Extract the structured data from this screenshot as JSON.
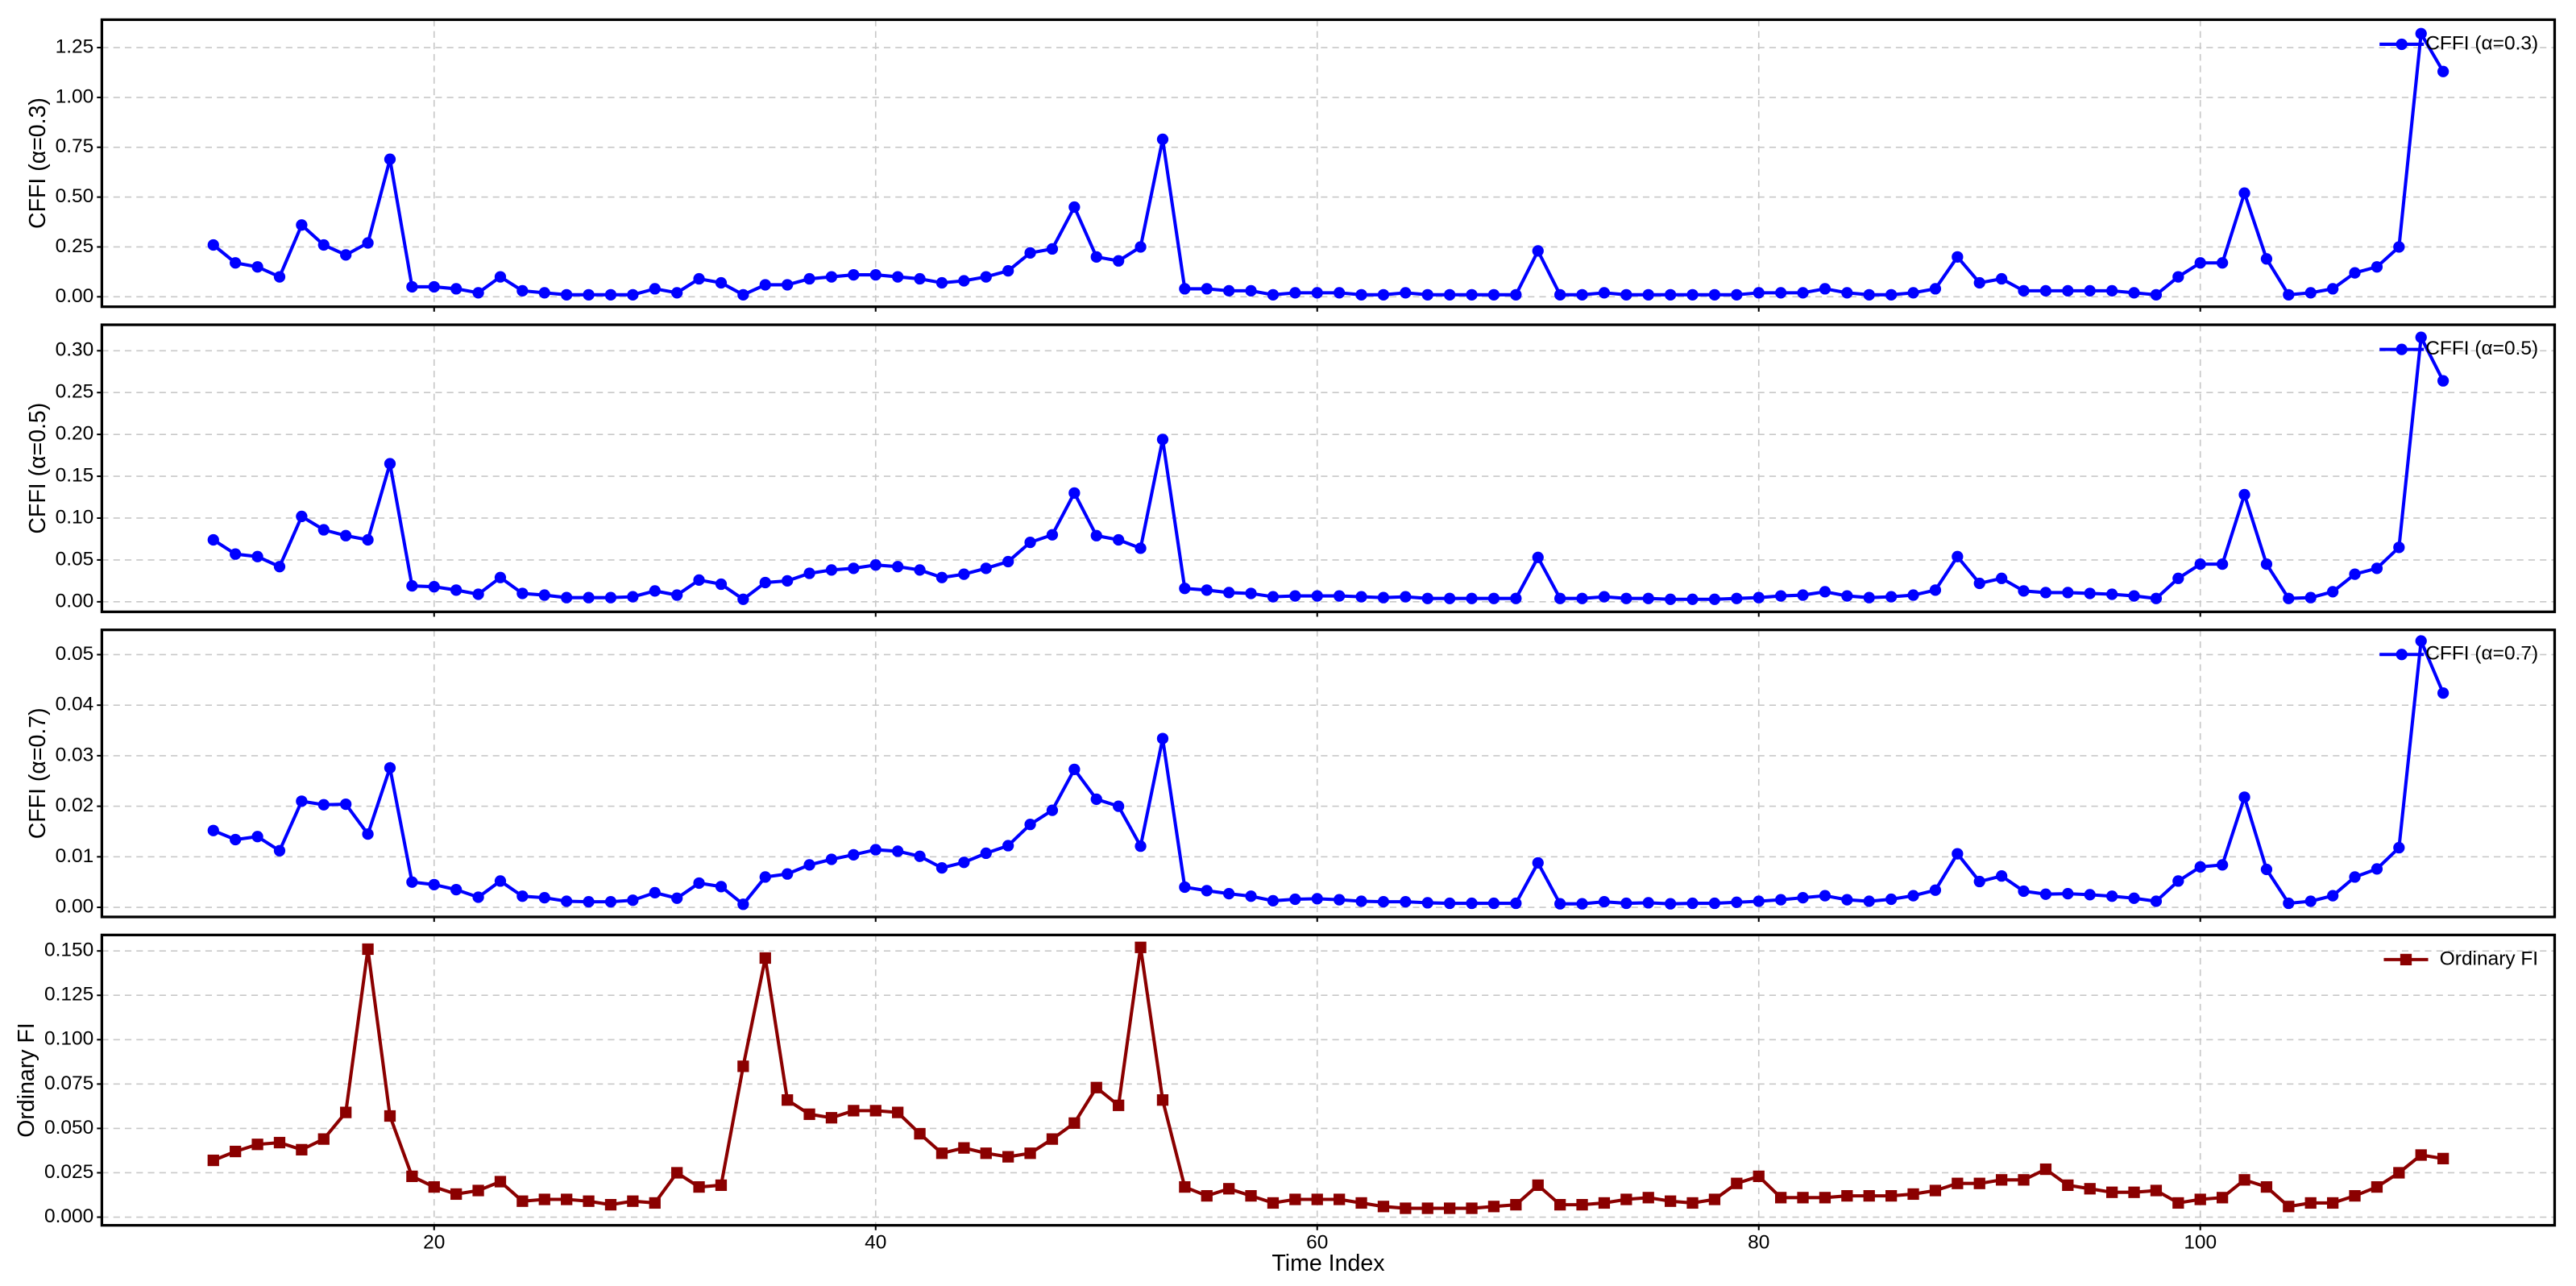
{
  "chart_data": [
    {
      "type": "line",
      "ylabel": "CFFI (α=0.3)",
      "grid": true,
      "legend": "upper right",
      "xlim": [
        4.95,
        116.05
      ],
      "xticks": [
        20,
        40,
        60,
        80,
        100
      ],
      "ylim": [
        -0.05,
        1.39
      ],
      "yticks": [
        {
          "value": 0,
          "label": "0.00"
        },
        0.25,
        {
          "value": 0.5,
          "label": "0.50"
        },
        0.75,
        {
          "value": 1,
          "label": "1.00"
        },
        1.25
      ],
      "x": [
        10,
        11,
        12,
        13,
        14,
        15,
        16,
        17,
        18,
        19,
        20,
        21,
        22,
        23,
        24,
        25,
        26,
        27,
        28,
        29,
        30,
        31,
        32,
        33,
        34,
        35,
        36,
        37,
        38,
        39,
        40,
        41,
        42,
        43,
        44,
        45,
        46,
        47,
        48,
        49,
        50,
        51,
        52,
        53,
        54,
        55,
        56,
        57,
        58,
        59,
        60,
        61,
        62,
        63,
        64,
        65,
        66,
        67,
        68,
        69,
        70,
        71,
        72,
        73,
        74,
        75,
        76,
        77,
        78,
        79,
        80,
        81,
        82,
        83,
        84,
        85,
        86,
        87,
        88,
        89,
        90,
        91,
        92,
        93,
        94,
        95,
        96,
        97,
        98,
        99,
        100,
        101,
        102,
        103,
        104,
        105,
        106,
        107,
        108,
        109,
        110,
        111
      ],
      "series": [
        {
          "name": "CFFI (α=0.3)",
          "color": "#0000ff",
          "marker": "circle",
          "values": [
            0.26,
            0.17,
            0.15,
            0.1,
            0.36,
            0.26,
            0.21,
            0.27,
            0.69,
            0.05,
            0.05,
            0.04,
            0.02,
            0.1,
            0.03,
            0.02,
            0.01,
            0.01,
            0.01,
            0.01,
            0.04,
            0.02,
            0.09,
            0.07,
            0.01,
            0.06,
            0.06,
            0.09,
            0.1,
            0.11,
            0.11,
            0.1,
            0.09,
            0.07,
            0.08,
            0.1,
            0.13,
            0.22,
            0.24,
            0.45,
            0.2,
            0.18,
            0.25,
            0.79,
            0.04,
            0.04,
            0.03,
            0.03,
            0.01,
            0.02,
            0.02,
            0.02,
            0.01,
            0.01,
            0.02,
            0.01,
            0.01,
            0.01,
            0.01,
            0.01,
            0.23,
            0.01,
            0.01,
            0.02,
            0.01,
            0.01,
            0.01,
            0.01,
            0.01,
            0.01,
            0.02,
            0.02,
            0.02,
            0.04,
            0.02,
            0.01,
            0.01,
            0.02,
            0.04,
            0.2,
            0.07,
            0.09,
            0.03,
            0.03,
            0.03,
            0.03,
            0.03,
            0.02,
            0.01,
            0.1,
            0.17,
            0.17,
            0.52,
            0.19,
            0.01,
            0.02,
            0.04,
            0.12,
            0.15,
            0.25,
            1.32,
            1.13
          ]
        }
      ]
    },
    {
      "type": "line",
      "ylabel": "CFFI (α=0.5)",
      "grid": true,
      "legend": "upper right",
      "xlim": [
        4.95,
        116.05
      ],
      "xticks": [
        20,
        40,
        60,
        80,
        100
      ],
      "ylim": [
        -0.012,
        0.331
      ],
      "yticks": [
        {
          "value": 0,
          "label": "0.00"
        },
        0.05,
        {
          "value": 0.1,
          "label": "0.10"
        },
        0.15,
        {
          "value": 0.2,
          "label": "0.20"
        },
        0.25,
        {
          "value": 0.3,
          "label": "0.30"
        }
      ],
      "x": [
        10,
        11,
        12,
        13,
        14,
        15,
        16,
        17,
        18,
        19,
        20,
        21,
        22,
        23,
        24,
        25,
        26,
        27,
        28,
        29,
        30,
        31,
        32,
        33,
        34,
        35,
        36,
        37,
        38,
        39,
        40,
        41,
        42,
        43,
        44,
        45,
        46,
        47,
        48,
        49,
        50,
        51,
        52,
        53,
        54,
        55,
        56,
        57,
        58,
        59,
        60,
        61,
        62,
        63,
        64,
        65,
        66,
        67,
        68,
        69,
        70,
        71,
        72,
        73,
        74,
        75,
        76,
        77,
        78,
        79,
        80,
        81,
        82,
        83,
        84,
        85,
        86,
        87,
        88,
        89,
        90,
        91,
        92,
        93,
        94,
        95,
        96,
        97,
        98,
        99,
        100,
        101,
        102,
        103,
        104,
        105,
        106,
        107,
        108,
        109,
        110,
        111
      ],
      "series": [
        {
          "name": "CFFI (α=0.5)",
          "color": "#0000ff",
          "marker": "circle",
          "values": [
            0.074,
            0.057,
            0.054,
            0.042,
            0.102,
            0.086,
            0.079,
            0.074,
            0.165,
            0.019,
            0.018,
            0.014,
            0.009,
            0.029,
            0.01,
            0.008,
            0.005,
            0.005,
            0.005,
            0.006,
            0.013,
            0.008,
            0.026,
            0.021,
            0.003,
            0.023,
            0.025,
            0.034,
            0.038,
            0.04,
            0.044,
            0.042,
            0.038,
            0.029,
            0.033,
            0.04,
            0.048,
            0.071,
            0.08,
            0.13,
            0.079,
            0.074,
            0.064,
            0.194,
            0.016,
            0.014,
            0.011,
            0.01,
            0.006,
            0.007,
            0.007,
            0.007,
            0.006,
            0.005,
            0.006,
            0.004,
            0.004,
            0.004,
            0.004,
            0.004,
            0.053,
            0.004,
            0.004,
            0.006,
            0.004,
            0.004,
            0.003,
            0.003,
            0.003,
            0.004,
            0.005,
            0.007,
            0.008,
            0.012,
            0.007,
            0.005,
            0.006,
            0.008,
            0.014,
            0.054,
            0.022,
            0.028,
            0.013,
            0.011,
            0.011,
            0.01,
            0.009,
            0.007,
            0.004,
            0.028,
            0.045,
            0.045,
            0.128,
            0.045,
            0.004,
            0.005,
            0.012,
            0.033,
            0.04,
            0.065,
            0.316,
            0.264
          ]
        }
      ]
    },
    {
      "type": "line",
      "ylabel": "CFFI (α=0.7)",
      "grid": true,
      "legend": "upper right",
      "xlim": [
        4.95,
        116.05
      ],
      "xticks": [
        20,
        40,
        60,
        80,
        100
      ],
      "ylim": [
        -0.0019,
        0.0549
      ],
      "yticks": [
        {
          "value": 0,
          "label": "0.00"
        },
        0.01,
        0.02,
        0.03,
        0.04,
        0.05
      ],
      "x": [
        10,
        11,
        12,
        13,
        14,
        15,
        16,
        17,
        18,
        19,
        20,
        21,
        22,
        23,
        24,
        25,
        26,
        27,
        28,
        29,
        30,
        31,
        32,
        33,
        34,
        35,
        36,
        37,
        38,
        39,
        40,
        41,
        42,
        43,
        44,
        45,
        46,
        47,
        48,
        49,
        50,
        51,
        52,
        53,
        54,
        55,
        56,
        57,
        58,
        59,
        60,
        61,
        62,
        63,
        64,
        65,
        66,
        67,
        68,
        69,
        70,
        71,
        72,
        73,
        74,
        75,
        76,
        77,
        78,
        79,
        80,
        81,
        82,
        83,
        84,
        85,
        86,
        87,
        88,
        89,
        90,
        91,
        92,
        93,
        94,
        95,
        96,
        97,
        98,
        99,
        100,
        101,
        102,
        103,
        104,
        105,
        106,
        107,
        108,
        109,
        110,
        111
      ],
      "series": [
        {
          "name": "CFFI (α=0.7)",
          "color": "#0000ff",
          "marker": "circle",
          "values": [
            0.0152,
            0.0134,
            0.014,
            0.0112,
            0.021,
            0.0203,
            0.0204,
            0.0145,
            0.0276,
            0.005,
            0.0045,
            0.0035,
            0.002,
            0.0052,
            0.0022,
            0.0019,
            0.0012,
            0.0011,
            0.0011,
            0.0014,
            0.0029,
            0.0018,
            0.0048,
            0.0041,
            0.0006,
            0.006,
            0.0066,
            0.0084,
            0.0095,
            0.0104,
            0.0114,
            0.0111,
            0.0101,
            0.0078,
            0.0089,
            0.0107,
            0.0122,
            0.0164,
            0.0192,
            0.0273,
            0.0214,
            0.02,
            0.0121,
            0.0334,
            0.004,
            0.0033,
            0.0027,
            0.0022,
            0.0013,
            0.0016,
            0.0017,
            0.0015,
            0.0012,
            0.0011,
            0.0011,
            0.0009,
            0.0008,
            0.0008,
            0.0008,
            0.0008,
            0.0088,
            0.0007,
            0.0007,
            0.0011,
            0.0008,
            0.0009,
            0.0007,
            0.0008,
            0.0008,
            0.001,
            0.0012,
            0.0015,
            0.0019,
            0.0023,
            0.0015,
            0.0012,
            0.0016,
            0.0023,
            0.0034,
            0.0106,
            0.0051,
            0.0062,
            0.0032,
            0.0026,
            0.0027,
            0.0025,
            0.0022,
            0.0018,
            0.0012,
            0.0052,
            0.008,
            0.0084,
            0.0218,
            0.0075,
            0.0008,
            0.0012,
            0.0023,
            0.006,
            0.0076,
            0.0118,
            0.0527,
            0.0424
          ]
        }
      ]
    },
    {
      "type": "line",
      "ylabel": "Ordinary FI",
      "xlabel": "Time Index",
      "grid": true,
      "legend": "upper right",
      "xlim": [
        4.95,
        116.05
      ],
      "xticks": [
        20,
        40,
        60,
        80,
        100
      ],
      "ylim": [
        -0.0046,
        0.159
      ],
      "yticks": [
        {
          "value": 0,
          "label": "0.000"
        },
        0.025,
        {
          "value": 0.05,
          "label": "0.050"
        },
        0.075,
        {
          "value": 0.1,
          "label": "0.100"
        },
        0.125,
        {
          "value": 0.15,
          "label": "0.150"
        }
      ],
      "x": [
        10,
        11,
        12,
        13,
        14,
        15,
        16,
        17,
        18,
        19,
        20,
        21,
        22,
        23,
        24,
        25,
        26,
        27,
        28,
        29,
        30,
        31,
        32,
        33,
        34,
        35,
        36,
        37,
        38,
        39,
        40,
        41,
        42,
        43,
        44,
        45,
        46,
        47,
        48,
        49,
        50,
        51,
        52,
        53,
        54,
        55,
        56,
        57,
        58,
        59,
        60,
        61,
        62,
        63,
        64,
        65,
        66,
        67,
        68,
        69,
        70,
        71,
        72,
        73,
        74,
        75,
        76,
        77,
        78,
        79,
        80,
        81,
        82,
        83,
        84,
        85,
        86,
        87,
        88,
        89,
        90,
        91,
        92,
        93,
        94,
        95,
        96,
        97,
        98,
        99,
        100,
        101,
        102,
        103,
        104,
        105,
        106,
        107,
        108,
        109,
        110,
        111
      ],
      "series": [
        {
          "name": "Ordinary FI",
          "color": "#8b0000",
          "marker": "square",
          "values": [
            0.032,
            0.037,
            0.041,
            0.042,
            0.038,
            0.044,
            0.059,
            0.151,
            0.057,
            0.023,
            0.017,
            0.013,
            0.015,
            0.02,
            0.009,
            0.01,
            0.01,
            0.009,
            0.007,
            0.009,
            0.008,
            0.025,
            0.017,
            0.018,
            0.085,
            0.146,
            0.066,
            0.058,
            0.056,
            0.06,
            0.06,
            0.059,
            0.047,
            0.036,
            0.039,
            0.036,
            0.034,
            0.036,
            0.044,
            0.053,
            0.073,
            0.063,
            0.152,
            0.066,
            0.017,
            0.012,
            0.016,
            0.012,
            0.008,
            0.01,
            0.01,
            0.01,
            0.008,
            0.006,
            0.005,
            0.005,
            0.005,
            0.005,
            0.006,
            0.007,
            0.018,
            0.007,
            0.007,
            0.008,
            0.01,
            0.011,
            0.009,
            0.008,
            0.01,
            0.019,
            0.023,
            0.011,
            0.011,
            0.011,
            0.012,
            0.012,
            0.012,
            0.013,
            0.015,
            0.019,
            0.019,
            0.021,
            0.021,
            0.027,
            0.018,
            0.016,
            0.014,
            0.014,
            0.015,
            0.008,
            0.01,
            0.011,
            0.021,
            0.017,
            0.006,
            0.008,
            0.008,
            0.012,
            0.017,
            0.025,
            0.035,
            0.033
          ]
        }
      ]
    }
  ]
}
